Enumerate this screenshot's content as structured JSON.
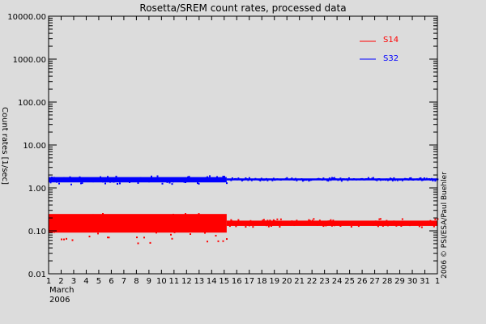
{
  "chart_data": {
    "type": "scatter",
    "title": "Rosetta/SREM count rates, processed data",
    "xlabel": "March 2006",
    "ylabel": "Count rates [1/sec]",
    "yscale": "log",
    "ylim": [
      0.01,
      10000
    ],
    "y_tick_labels": [
      "10000.00",
      "1000.00",
      "100.00",
      "10.00",
      "1.00",
      "0.10",
      "0.01"
    ],
    "y_tick_values": [
      10000,
      1000,
      100,
      10,
      1,
      0.1,
      0.01
    ],
    "x_tick_labels": [
      "1",
      "2",
      "3",
      "4",
      "5",
      "6",
      "7",
      "8",
      "9",
      "10",
      "11",
      "12",
      "13",
      "14",
      "15",
      "16",
      "17",
      "18",
      "19",
      "20",
      "21",
      "22",
      "23",
      "24",
      "25",
      "26",
      "27",
      "28",
      "29",
      "30",
      "31",
      "1"
    ],
    "x_month_label": "March",
    "x_year_label": "2006",
    "xlim": [
      "2006-03-01",
      "2006-04-01"
    ],
    "grid": false,
    "legend_position": "upper right (inside)",
    "series": [
      {
        "name": "S14",
        "color": "#ff0000",
        "segments": [
          {
            "x_range": [
              1,
              15.2
            ],
            "typical": 0.15,
            "min": 0.05,
            "max": 0.25
          },
          {
            "x_range": [
              15.2,
              32
            ],
            "typical": 0.15,
            "min": 0.12,
            "max": 0.19
          }
        ]
      },
      {
        "name": "S32",
        "color": "#0000ff",
        "segments": [
          {
            "x_range": [
              1,
              15.2
            ],
            "typical": 1.55,
            "min": 1.2,
            "max": 1.9
          },
          {
            "x_range": [
              15.2,
              32
            ],
            "typical": 1.58,
            "min": 1.45,
            "max": 1.72
          }
        ]
      }
    ],
    "annotations": [
      "2006 © PSI/ESA/Paul Buehler"
    ]
  },
  "plot": {
    "title": "Rosetta/SREM count rates, processed data",
    "ylabel": "Count rates [1/sec]",
    "month": "March",
    "year": "2006",
    "copyright": "2006 © PSI/ESA/Paul Buehler",
    "legend": [
      {
        "label": "S14",
        "color": "#ff0000"
      },
      {
        "label": "S32",
        "color": "#0000ff"
      }
    ]
  }
}
